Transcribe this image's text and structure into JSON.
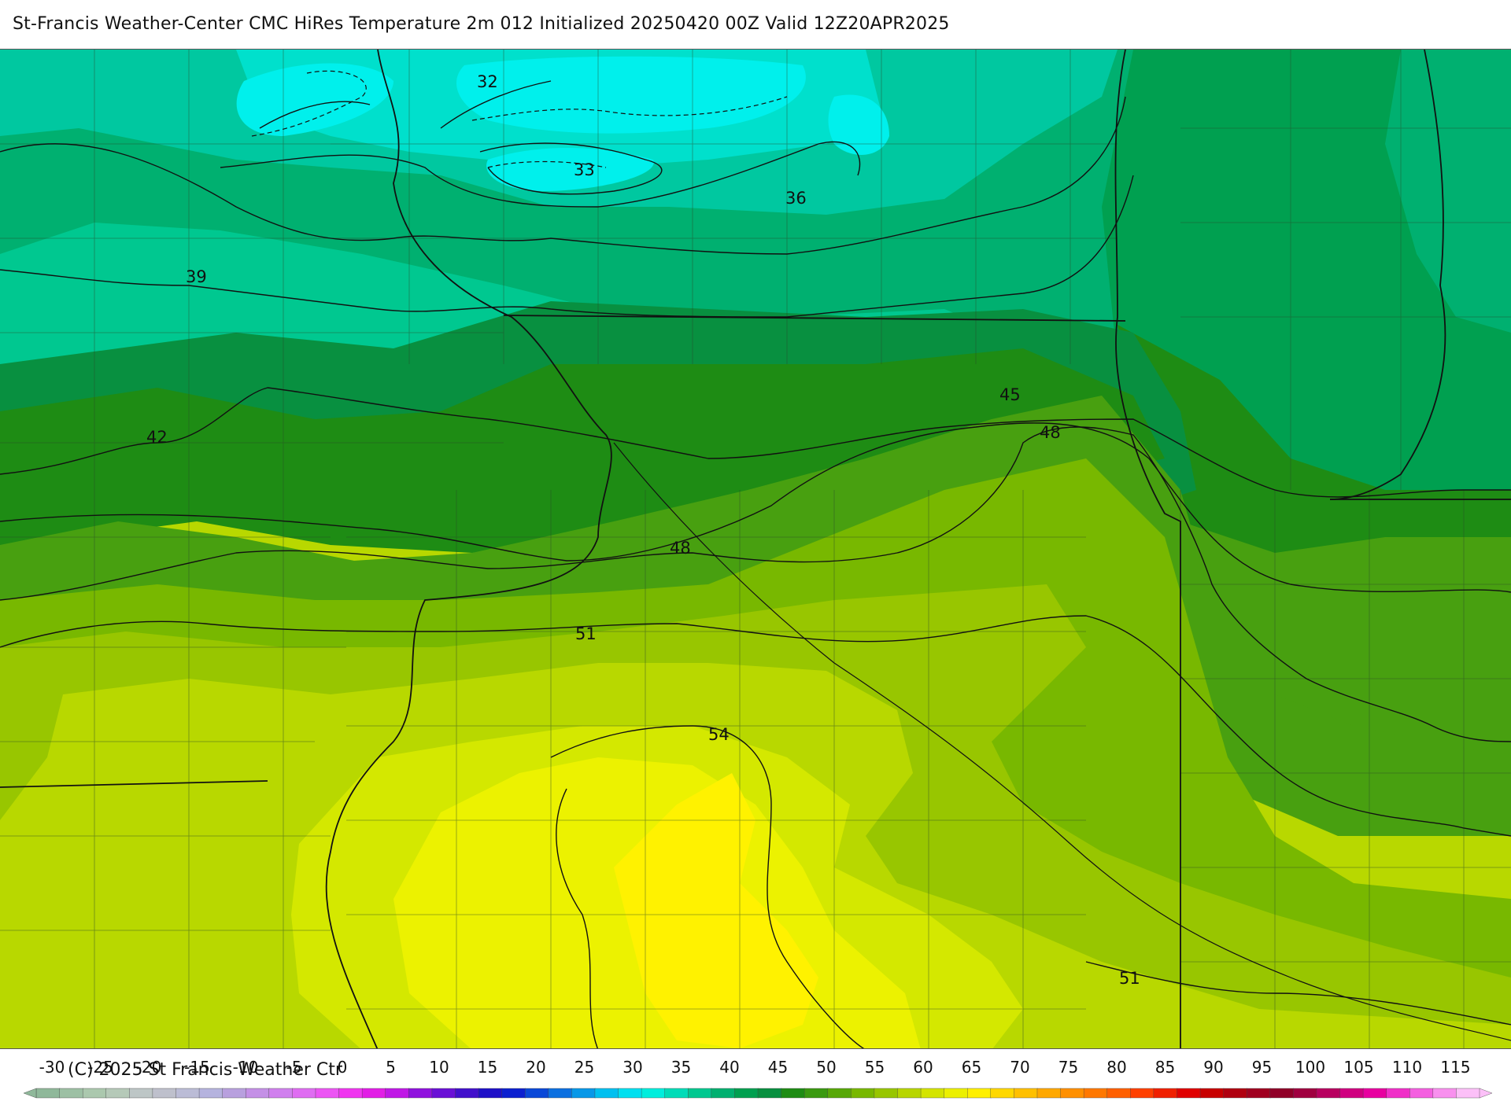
{
  "title": "St-Francis Weather-Center CMC HiRes Temperature 2m  012 Initialized 20250420 00Z Valid 12Z20APR2025",
  "copyright": "(C) 2025 St Francis Weather Ctr",
  "contour_labels": [
    "32",
    "33",
    "36",
    "39",
    "42",
    "45",
    "48",
    "48",
    "51",
    "54",
    "51"
  ],
  "legend": {
    "tick_labels": [
      "-30",
      "-25",
      "-20",
      "-15",
      "-10",
      "-5",
      "0",
      "5",
      "10",
      "15",
      "20",
      "25",
      "30",
      "35",
      "40",
      "45",
      "50",
      "55",
      "60",
      "65",
      "70",
      "75",
      "80",
      "85",
      "90",
      "95",
      "100",
      "105",
      "110",
      "115"
    ],
    "colors": [
      "#8fb89a",
      "#9dc0a4",
      "#abc8ae",
      "#b5c9b8",
      "#bdc6c6",
      "#bec0cc",
      "#bbbcd6",
      "#b5b3de",
      "#b8a0de",
      "#c490e6",
      "#d080ee",
      "#df6df2",
      "#ec55f4",
      "#f036f0",
      "#e21ee6",
      "#c018e6",
      "#9012de",
      "#6a10d6",
      "#4210cc",
      "#1e10c8",
      "#0c20d0",
      "#0a48d8",
      "#0c70e0",
      "#0898e8",
      "#00c0f0",
      "#00e0f0",
      "#00eedd",
      "#00dcb8",
      "#00c890",
      "#00b070",
      "#00a050",
      "#089040",
      "#1e8c14",
      "#3a9a10",
      "#58a808",
      "#78b800",
      "#98c600",
      "#b8d600",
      "#d4e400",
      "#ecf000",
      "#fff000",
      "#ffd800",
      "#ffc000",
      "#ffa800",
      "#ff9000",
      "#ff7800",
      "#ff6000",
      "#ff4000",
      "#f02000",
      "#e00000",
      "#c80000",
      "#b00010",
      "#a00020",
      "#900028",
      "#a00040",
      "#b80060",
      "#d00080",
      "#e800a0",
      "#f030c8",
      "#f460e0",
      "#f890ee",
      "#fcc0f8"
    ],
    "fill_colors": {
      "t30": "#00f0ec",
      "t33": "#00e0cc",
      "t36": "#00c8a0",
      "t39": "#00b070",
      "t42": "#00a050",
      "t45": "#1e8c14",
      "t48": "#48a010",
      "t50": "#78b800",
      "t52": "#98c600",
      "t54": "#b8d800",
      "t56": "#d4e800",
      "t58": "#ecf200",
      "t60": "#fff200"
    }
  }
}
